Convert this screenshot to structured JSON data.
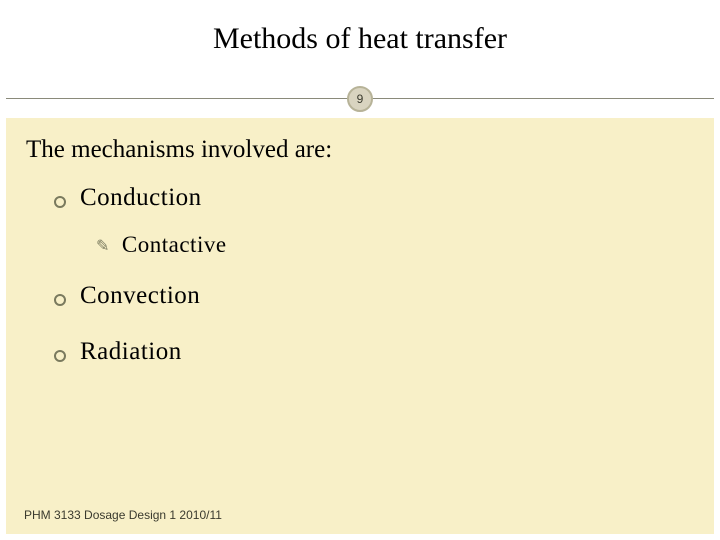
{
  "slide": {
    "title": "Methods of heat transfer",
    "page_number": "9",
    "intro": "The mechanisms involved are:",
    "bullets": {
      "b1": "Conduction",
      "b1a": "Contactive",
      "b2": "Convection",
      "b3": "Radiation"
    },
    "footer": "PHM 3133 Dosage Design 1 2010/11"
  },
  "style": {
    "background_color": "#f8f0c8",
    "title_fontsize": 30,
    "body_fontsize": 25,
    "sub_fontsize": 23,
    "footer_fontsize": 12,
    "bullet_ring_color": "#7a7a5e",
    "divider_color": "#8a8a7a",
    "badge_bg": "#d9d4c0",
    "badge_border": "#b7b398",
    "text_color": "#000000",
    "footer_color": "#3a3a2e",
    "font_family_title": "Georgia",
    "font_family_footer": "Arial"
  }
}
